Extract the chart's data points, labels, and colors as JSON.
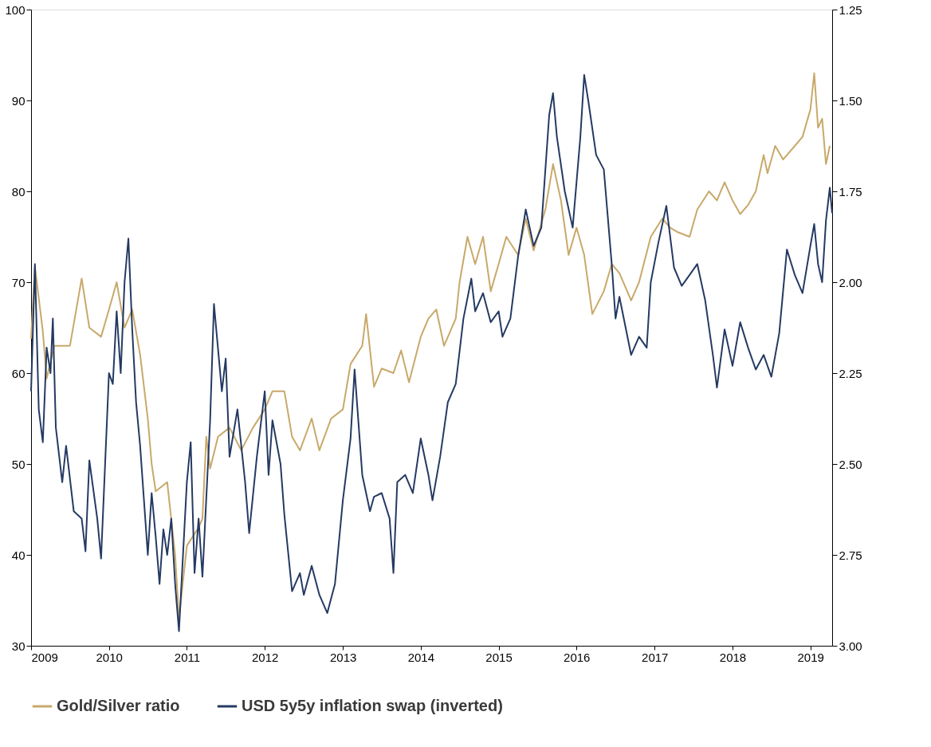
{
  "chart_data": {
    "type": "line",
    "xlim": [
      "2009-01-01",
      "2019-04-13"
    ],
    "xticks": [
      {
        "value": "2009",
        "label": "2009"
      },
      {
        "value": "2010",
        "label": "2010"
      },
      {
        "value": "2011",
        "label": "2011"
      },
      {
        "value": "2012",
        "label": "2012"
      },
      {
        "value": "2013",
        "label": "2013"
      },
      {
        "value": "2014",
        "label": "2014"
      },
      {
        "value": "2015",
        "label": "2015"
      },
      {
        "value": "2016",
        "label": "2016"
      },
      {
        "value": "2017",
        "label": "2017"
      },
      {
        "value": "2018",
        "label": "2018"
      },
      {
        "value": "2019",
        "label": "2019"
      }
    ],
    "ylim": [
      30,
      100
    ],
    "yticks": [
      30,
      40,
      50,
      60,
      70,
      80,
      90,
      100
    ],
    "y2lim": [
      3.0,
      1.25
    ],
    "y2ticks": [
      {
        "value": 1.25,
        "label": "1.25"
      },
      {
        "value": 1.5,
        "label": "1.50"
      },
      {
        "value": 1.75,
        "label": "1.75"
      },
      {
        "value": 2.0,
        "label": "2.00"
      },
      {
        "value": 2.25,
        "label": "2.25"
      },
      {
        "value": 2.5,
        "label": "2.50"
      },
      {
        "value": 2.75,
        "label": "2.75"
      },
      {
        "value": 3.0,
        "label": "3.00"
      }
    ],
    "grid": false,
    "legend": "bottom",
    "line_style": "solid",
    "marker": "none",
    "series": [
      {
        "name": "Gold/Silver ratio",
        "color": "#c8a96a",
        "x": [
          "2009-01-01",
          "2009-01-19",
          "2009-02-25",
          "2009-03-15",
          "2009-04-20",
          "2009-07-02",
          "2009-08-26",
          "2009-10-01",
          "2009-11-25",
          "2010-01-01",
          "2010-02-06",
          "2010-03-15",
          "2010-04-20",
          "2010-05-27",
          "2010-07-02",
          "2010-07-20",
          "2010-08-08",
          "2010-10-01",
          "2010-11-07",
          "2010-11-25",
          "2011-01-01",
          "2011-02-25",
          "2011-03-15",
          "2011-04-02",
          "2011-04-20",
          "2011-05-27",
          "2011-07-20",
          "2011-09-13",
          "2011-11-07",
          "2012-01-01",
          "2012-02-06",
          "2012-04-02",
          "2012-05-08",
          "2012-06-14",
          "2012-08-08",
          "2012-09-13",
          "2012-11-07",
          "2013-01-01",
          "2013-02-06",
          "2013-04-02",
          "2013-04-20",
          "2013-05-27",
          "2013-07-02",
          "2013-08-26",
          "2013-10-01",
          "2013-11-07",
          "2014-01-01",
          "2014-02-06",
          "2014-03-15",
          "2014-04-20",
          "2014-06-14",
          "2014-07-02",
          "2014-08-08",
          "2014-09-13",
          "2014-10-20",
          "2014-11-25",
          "2015-01-01",
          "2015-02-06",
          "2015-04-02",
          "2015-05-08",
          "2015-06-14",
          "2015-08-08",
          "2015-09-13",
          "2015-10-20",
          "2015-11-25",
          "2016-01-01",
          "2016-02-06",
          "2016-03-15",
          "2016-05-08",
          "2016-06-14",
          "2016-07-20",
          "2016-09-13",
          "2016-10-20",
          "2016-12-14",
          "2017-02-06",
          "2017-03-15",
          "2017-04-20",
          "2017-06-14",
          "2017-07-20",
          "2017-09-13",
          "2017-10-20",
          "2017-11-25",
          "2018-01-01",
          "2018-02-06",
          "2018-03-15",
          "2018-04-20",
          "2018-05-27",
          "2018-06-14",
          "2018-07-20",
          "2018-08-26",
          "2018-10-20",
          "2018-11-25",
          "2019-01-01",
          "2019-01-19",
          "2019-02-06",
          "2019-02-25",
          "2019-03-15",
          "2019-04-02"
        ],
        "values": [
          63.8,
          71.7,
          64.6,
          59.4,
          63,
          63,
          70.4,
          65,
          64,
          67,
          70,
          65,
          67,
          62,
          55,
          50,
          47,
          48,
          40,
          33,
          41,
          43,
          44,
          53,
          49.5,
          53,
          54,
          51.5,
          54,
          56,
          58,
          58,
          53,
          51.5,
          55,
          51.5,
          55,
          56,
          61,
          63,
          66.5,
          58.5,
          60.5,
          60,
          62.5,
          59,
          64,
          66,
          67,
          63,
          66,
          70,
          75,
          72,
          75,
          69,
          72,
          75,
          73,
          77,
          73.5,
          78,
          83,
          79,
          73,
          76,
          73,
          66.5,
          69,
          72,
          71,
          68,
          70,
          75,
          77,
          76,
          75.5,
          75,
          78,
          80,
          79,
          81,
          79,
          77.5,
          78.5,
          80,
          84,
          82,
          85,
          83.5,
          85,
          86,
          89,
          93,
          87,
          88,
          83,
          85
        ]
      },
      {
        "name": "USD 5y5y inflation swap (inverted)",
        "color": "#253a63",
        "axis": "y2",
        "x": [
          "2009-01-01",
          "2009-01-19",
          "2009-02-06",
          "2009-02-25",
          "2009-03-15",
          "2009-04-02",
          "2009-04-13",
          "2009-04-27",
          "2009-05-27",
          "2009-06-14",
          "2009-07-20",
          "2009-08-26",
          "2009-09-13",
          "2009-10-01",
          "2009-11-07",
          "2009-11-25",
          "2010-01-01",
          "2010-01-19",
          "2010-02-06",
          "2010-02-25",
          "2010-03-15",
          "2010-04-02",
          "2010-04-20",
          "2010-05-08",
          "2010-05-27",
          "2010-07-02",
          "2010-07-20",
          "2010-08-08",
          "2010-08-26",
          "2010-09-13",
          "2010-10-01",
          "2010-10-20",
          "2010-11-07",
          "2010-11-25",
          "2011-01-01",
          "2011-01-19",
          "2011-02-06",
          "2011-02-25",
          "2011-03-15",
          "2011-04-20",
          "2011-05-08",
          "2011-06-14",
          "2011-07-02",
          "2011-07-20",
          "2011-08-26",
          "2011-10-01",
          "2011-10-20",
          "2011-11-25",
          "2012-01-01",
          "2012-01-19",
          "2012-02-06",
          "2012-03-15",
          "2012-04-02",
          "2012-05-08",
          "2012-06-14",
          "2012-07-02",
          "2012-08-08",
          "2012-09-13",
          "2012-10-20",
          "2012-11-25",
          "2013-01-01",
          "2013-02-06",
          "2013-02-25",
          "2013-04-02",
          "2013-05-08",
          "2013-05-27",
          "2013-07-02",
          "2013-08-08",
          "2013-08-26",
          "2013-09-13",
          "2013-10-20",
          "2013-11-25",
          "2014-01-01",
          "2014-02-06",
          "2014-02-25",
          "2014-04-02",
          "2014-05-08",
          "2014-06-14",
          "2014-07-20",
          "2014-08-26",
          "2014-09-13",
          "2014-10-20",
          "2014-11-25",
          "2015-01-01",
          "2015-01-19",
          "2015-02-25",
          "2015-04-02",
          "2015-05-08",
          "2015-06-14",
          "2015-07-20",
          "2015-08-26",
          "2015-09-13",
          "2015-10-01",
          "2015-11-07",
          "2015-12-14",
          "2016-01-19",
          "2016-02-06",
          "2016-02-25",
          "2016-04-02",
          "2016-05-08",
          "2016-06-14",
          "2016-07-02",
          "2016-07-20",
          "2016-09-13",
          "2016-10-20",
          "2016-11-25",
          "2016-12-14",
          "2017-01-19",
          "2017-02-25",
          "2017-04-02",
          "2017-05-08",
          "2017-06-14",
          "2017-07-20",
          "2017-08-26",
          "2017-10-01",
          "2017-10-20",
          "2017-11-25",
          "2018-01-01",
          "2018-02-06",
          "2018-03-15",
          "2018-04-20",
          "2018-05-27",
          "2018-07-02",
          "2018-08-08",
          "2018-09-13",
          "2018-10-20",
          "2018-11-25",
          "2019-01-01",
          "2019-01-19",
          "2019-02-06",
          "2019-02-25",
          "2019-03-15",
          "2019-04-02",
          "2019-04-13"
        ],
        "values": [
          2.3,
          1.95,
          2.35,
          2.44,
          2.18,
          2.25,
          2.1,
          2.4,
          2.55,
          2.45,
          2.63,
          2.65,
          2.74,
          2.49,
          2.65,
          2.76,
          2.25,
          2.28,
          2.08,
          2.25,
          2.0,
          1.88,
          2.13,
          2.33,
          2.45,
          2.75,
          2.58,
          2.7,
          2.83,
          2.68,
          2.75,
          2.65,
          2.83,
          2.96,
          2.55,
          2.44,
          2.8,
          2.65,
          2.81,
          2.38,
          2.06,
          2.3,
          2.21,
          2.48,
          2.35,
          2.55,
          2.69,
          2.48,
          2.3,
          2.53,
          2.38,
          2.5,
          2.64,
          2.85,
          2.8,
          2.86,
          2.78,
          2.86,
          2.91,
          2.83,
          2.6,
          2.43,
          2.24,
          2.53,
          2.63,
          2.59,
          2.58,
          2.65,
          2.8,
          2.55,
          2.53,
          2.58,
          2.43,
          2.53,
          2.6,
          2.48,
          2.33,
          2.28,
          2.1,
          1.99,
          2.08,
          2.03,
          2.11,
          2.08,
          2.15,
          2.1,
          1.93,
          1.8,
          1.9,
          1.85,
          1.54,
          1.48,
          1.6,
          1.75,
          1.85,
          1.6,
          1.43,
          1.5,
          1.65,
          1.69,
          1.95,
          2.1,
          2.04,
          2.2,
          2.15,
          2.18,
          2.0,
          1.89,
          1.79,
          1.96,
          2.01,
          1.98,
          1.95,
          2.05,
          2.2,
          2.29,
          2.13,
          2.23,
          2.11,
          2.18,
          2.24,
          2.2,
          2.26,
          2.14,
          1.91,
          1.98,
          2.03,
          1.9,
          1.84,
          1.95,
          2.0,
          1.83,
          1.74,
          1.81
        ]
      }
    ]
  }
}
